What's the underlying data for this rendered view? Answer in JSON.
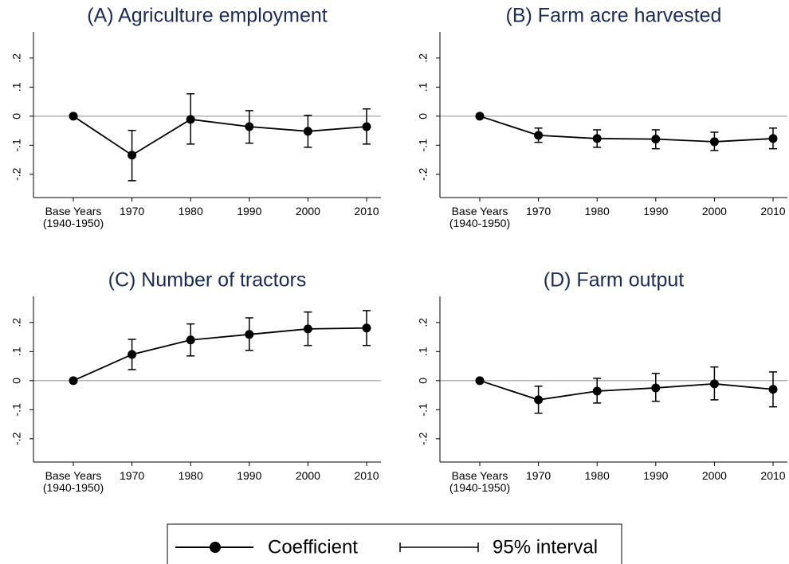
{
  "chart_data": [
    {
      "type": "line",
      "title": "(A) Agriculture employment",
      "categories": [
        "Base Years (1940-1950)",
        "1970",
        "1980",
        "1990",
        "2000",
        "2010"
      ],
      "values": [
        0,
        -0.134,
        -0.011,
        -0.036,
        -0.052,
        -0.036
      ],
      "lower": [
        null,
        -0.222,
        -0.096,
        -0.093,
        -0.107,
        -0.096
      ],
      "upper": [
        null,
        -0.049,
        0.077,
        0.019,
        0.003,
        0.025
      ],
      "color": "#000000",
      "ylim": [
        -0.28,
        0.29
      ],
      "yticks": [
        {
          "value": -0.2,
          "label": "-.2"
        },
        {
          "value": -0.1,
          "label": "-.1"
        },
        0,
        {
          "value": 0.1,
          "label": ".1"
        },
        {
          "value": 0.2,
          "label": ".2"
        }
      ]
    },
    {
      "type": "line",
      "title": "(B) Farm acre harvested",
      "categories": [
        "Base Years (1940-1950)",
        "1970",
        "1980",
        "1990",
        "2000",
        "2010"
      ],
      "values": [
        0,
        -0.066,
        -0.077,
        -0.079,
        -0.088,
        -0.077
      ],
      "lower": [
        null,
        -0.09,
        -0.107,
        -0.112,
        -0.118,
        -0.112
      ],
      "upper": [
        null,
        -0.041,
        -0.047,
        -0.047,
        -0.055,
        -0.041
      ],
      "color": "#000000",
      "ylim": [
        -0.28,
        0.29
      ],
      "yticks": [
        {
          "value": -0.2,
          "label": "-.2"
        },
        {
          "value": -0.1,
          "label": "-.1"
        },
        0,
        {
          "value": 0.1,
          "label": ".1"
        },
        {
          "value": 0.2,
          "label": ".2"
        }
      ]
    },
    {
      "type": "line",
      "title": "(C) Number of tractors",
      "categories": [
        "Base Years (1940-1950)",
        "1970",
        "1980",
        "1990",
        "2000",
        "2010"
      ],
      "values": [
        0,
        0.09,
        0.14,
        0.159,
        0.178,
        0.181
      ],
      "lower": [
        null,
        0.038,
        0.085,
        0.104,
        0.121,
        0.121
      ],
      "upper": [
        null,
        0.142,
        0.195,
        0.216,
        0.236,
        0.241
      ],
      "color": "#000000",
      "ylim": [
        -0.28,
        0.29
      ],
      "yticks": [
        {
          "value": -0.2,
          "label": "-.2"
        },
        {
          "value": -0.1,
          "label": "-.1"
        },
        0,
        {
          "value": 0.1,
          "label": ".1"
        },
        {
          "value": 0.2,
          "label": ".2"
        }
      ]
    },
    {
      "type": "line",
      "title": "(D) Farm output",
      "categories": [
        "Base Years (1940-1950)",
        "1970",
        "1980",
        "1990",
        "2000",
        "2010"
      ],
      "values": [
        0,
        -0.066,
        -0.036,
        -0.025,
        -0.011,
        -0.03
      ],
      "lower": [
        null,
        -0.112,
        -0.077,
        -0.071,
        -0.066,
        -0.09
      ],
      "upper": [
        null,
        -0.019,
        0.008,
        0.025,
        0.047,
        0.03
      ],
      "color": "#000000",
      "ylim": [
        -0.28,
        0.29
      ],
      "yticks": [
        {
          "value": -0.2,
          "label": "-.2"
        },
        {
          "value": -0.1,
          "label": "-.1"
        },
        0,
        {
          "value": 0.1,
          "label": ".1"
        },
        {
          "value": 0.2,
          "label": ".2"
        }
      ]
    }
  ],
  "legend": [
    "Coefficient",
    "95% interval"
  ]
}
